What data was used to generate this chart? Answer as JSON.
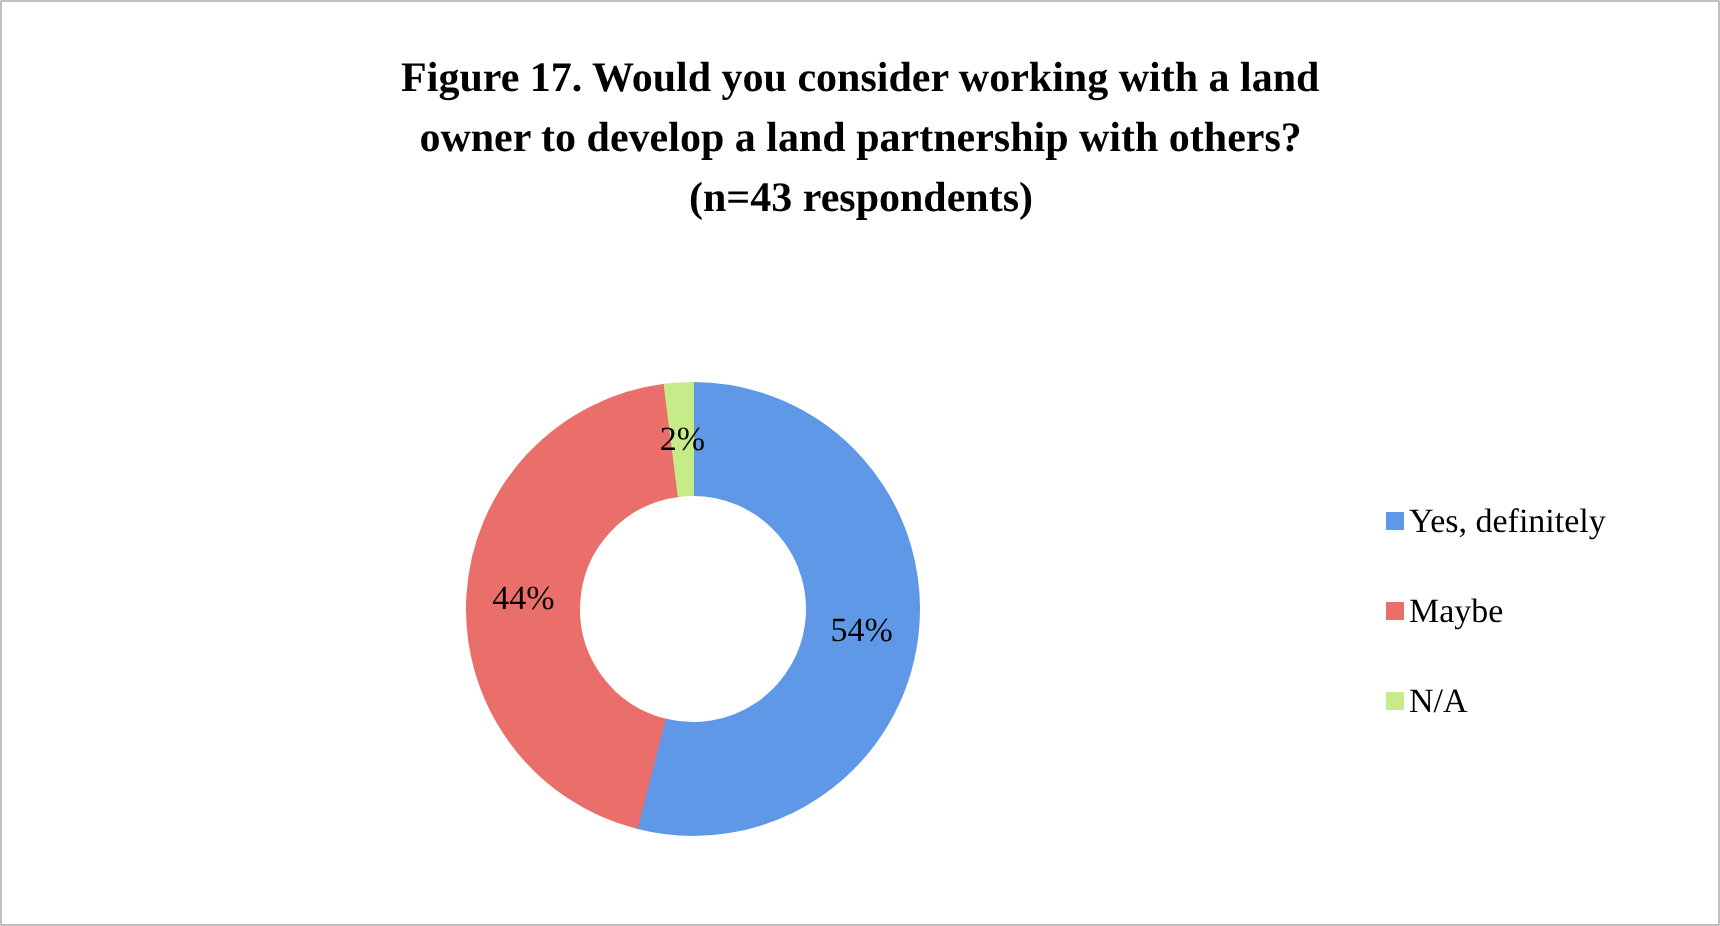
{
  "chart_data": {
    "type": "donut",
    "title": "Figure 17. Would you consider working with a land\nowner to develop a land partnership with others?\n(n=43 respondents)",
    "categories": [
      "Yes, definitely",
      "Maybe",
      "N/A"
    ],
    "values": [
      54,
      44,
      2
    ],
    "colors": [
      "#5f98e6",
      "#ea6f6b",
      "#c6ec8a"
    ],
    "value_labels": [
      "54%",
      "44%",
      "2%"
    ],
    "legend": "right"
  }
}
